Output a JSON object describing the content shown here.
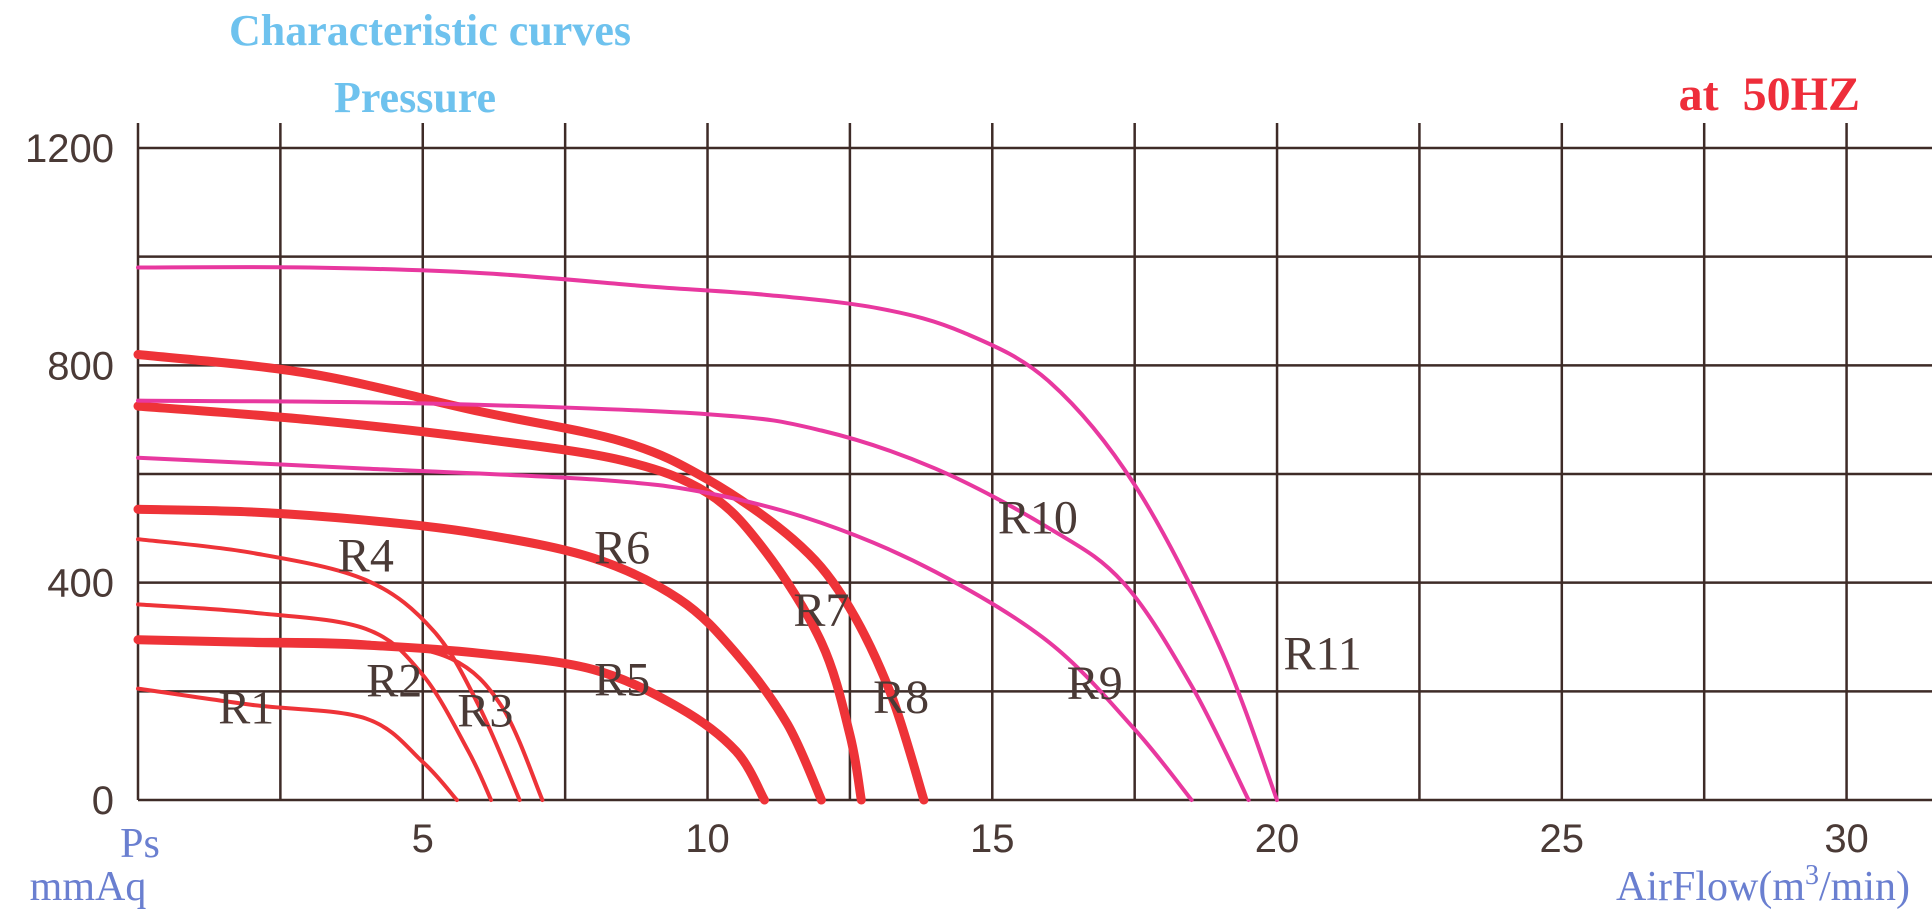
{
  "colors": {
    "grid": "#3e2b27",
    "title": "#6ec2ee",
    "frequency": "#ee2d3a",
    "axis_name": "#6a7fd0",
    "series_red": "#ee3338",
    "series_pink": "#e8389f",
    "tick_text": "#4a3a36"
  },
  "chart_data": {
    "type": "line",
    "title": "Characteristic curves",
    "subtitle": "Pressure",
    "annotation": "at  50HZ",
    "ylabel": "Ps",
    "yunit": "mmAq",
    "xlabel": "AirFlow(m",
    "xlabel_sup": "3",
    "xlabel_end": "/min)",
    "xlim": [
      0,
      31.5
    ],
    "ylim": [
      0,
      1200
    ],
    "x_ticks": [
      5,
      10,
      15,
      20,
      25,
      30
    ],
    "x_tick_labels": [
      "5",
      "10",
      "15",
      "20",
      "25",
      "30"
    ],
    "y_ticks": [
      0,
      400,
      800,
      1200
    ],
    "y_tick_labels": [
      "0",
      "400",
      "800",
      "1200"
    ],
    "grid": true,
    "series": [
      {
        "name": "R1",
        "color": "red",
        "weight": "thin",
        "x": [
          0,
          2,
          4,
          5,
          5.6
        ],
        "y": [
          205,
          175,
          150,
          70,
          0
        ],
        "label_at": [
          1.9,
          170
        ]
      },
      {
        "name": "R2",
        "color": "red",
        "weight": "thin",
        "x": [
          0,
          2,
          4,
          5,
          5.8,
          6.2
        ],
        "y": [
          360,
          345,
          315,
          230,
          90,
          0
        ],
        "label_at": [
          4.5,
          220
        ]
      },
      {
        "name": "R3",
        "color": "red",
        "weight": "thin",
        "x": [
          0,
          2,
          4,
          5.2,
          6,
          6.7
        ],
        "y": [
          480,
          455,
          405,
          310,
          170,
          0
        ],
        "label_at": [
          6.1,
          165
        ]
      },
      {
        "name": "R4",
        "color": "red",
        "weight": "thin",
        "x": [
          0,
          2,
          4,
          5.5,
          6.4,
          7.1
        ],
        "y": [
          295,
          295,
          290,
          260,
          170,
          0
        ],
        "label_at": [
          4.0,
          450
        ]
      },
      {
        "name": "R5",
        "color": "red",
        "weight": "thick",
        "x": [
          0,
          2,
          4,
          6,
          8,
          9.5,
          10.5,
          11
        ],
        "y": [
          295,
          290,
          285,
          270,
          240,
          170,
          90,
          0
        ],
        "label_at": [
          8.5,
          222
        ]
      },
      {
        "name": "R6",
        "color": "red",
        "weight": "thick",
        "x": [
          0,
          2,
          4,
          6,
          8,
          9.5,
          10.5,
          11.4,
          12
        ],
        "y": [
          535,
          530,
          515,
          490,
          445,
          370,
          270,
          140,
          0
        ],
        "label_at": [
          8.5,
          465
        ]
      },
      {
        "name": "R7",
        "color": "red",
        "weight": "thick",
        "x": [
          0,
          3,
          6,
          8.5,
          10,
          11,
          12,
          12.5,
          12.7
        ],
        "y": [
          725,
          700,
          665,
          625,
          565,
          460,
          290,
          120,
          0
        ],
        "label_at": [
          12.0,
          350
        ]
      },
      {
        "name": "R8",
        "color": "red",
        "weight": "thick",
        "x": [
          0,
          3,
          6,
          8.5,
          10,
          11.5,
          12.4,
          13.2,
          13.8
        ],
        "y": [
          820,
          785,
          715,
          660,
          590,
          480,
          370,
          200,
          0
        ],
        "label_at": [
          13.4,
          190
        ]
      },
      {
        "name": "R9",
        "color": "pink",
        "weight": "thin",
        "x": [
          0,
          4,
          8,
          10,
          12,
          14,
          16,
          17.5,
          18.5
        ],
        "y": [
          630,
          610,
          590,
          565,
          510,
          420,
          290,
          130,
          0
        ],
        "label_at": [
          16.8,
          215
        ]
      },
      {
        "name": "R10",
        "color": "pink",
        "weight": "thin",
        "x": [
          0,
          5,
          10,
          12,
          14,
          16,
          17.3,
          18.5,
          19.5
        ],
        "y": [
          735,
          730,
          710,
          680,
          610,
          500,
          400,
          210,
          0
        ],
        "label_at": [
          15.8,
          520
        ]
      },
      {
        "name": "R11",
        "color": "pink",
        "weight": "thin",
        "x": [
          0,
          3,
          6,
          9,
          11,
          13,
          14.5,
          16,
          17.5,
          19,
          20
        ],
        "y": [
          980,
          980,
          970,
          945,
          930,
          905,
          860,
          770,
          580,
          280,
          0
        ],
        "label_at": [
          20.8,
          270
        ]
      }
    ]
  }
}
